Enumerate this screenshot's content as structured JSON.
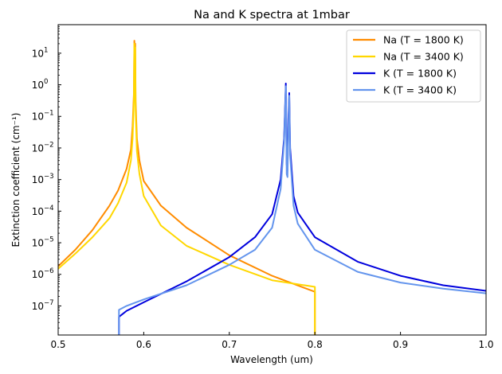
{
  "chart_data": {
    "type": "line",
    "title": "Na and K spectra at 1mbar",
    "xlabel": "Wavelength (um)",
    "ylabel": "Extinction coefficient (cm⁻¹)",
    "xlim": [
      0.5,
      1.0
    ],
    "ylim": [
      1.2e-08,
      80
    ],
    "yscale": "log",
    "grid": false,
    "legend_position": "top-right",
    "x_ticks": [
      "0.5",
      "0.6",
      "0.7",
      "0.8",
      "0.9",
      "1.0"
    ],
    "y_ticks": [
      {
        "base": "10",
        "exp": "1"
      },
      {
        "base": "10",
        "exp": "0"
      },
      {
        "base": "10",
        "exp": "−1"
      },
      {
        "base": "10",
        "exp": "−2"
      },
      {
        "base": "10",
        "exp": "−3"
      },
      {
        "base": "10",
        "exp": "−4"
      },
      {
        "base": "10",
        "exp": "−5"
      },
      {
        "base": "10",
        "exp": "−6"
      },
      {
        "base": "10",
        "exp": "−7"
      }
    ],
    "series": [
      {
        "name": "Na (T = 1800 K)",
        "color": "#ff8c00",
        "x": [
          0.5,
          0.52,
          0.54,
          0.56,
          0.57,
          0.58,
          0.585,
          0.587,
          0.5885,
          0.589,
          0.5895,
          0.59,
          0.5905,
          0.592,
          0.595,
          0.6,
          0.62,
          0.65,
          0.7,
          0.75,
          0.8
        ],
        "y": [
          1.8e-06,
          6e-06,
          2.5e-05,
          0.00015,
          0.00045,
          0.0022,
          0.009,
          0.05,
          0.5,
          25,
          12,
          20,
          0.3,
          0.02,
          0.004,
          0.0009,
          0.00015,
          3e-05,
          4e-06,
          9e-07,
          2.8e-07
        ]
      },
      {
        "name": "Na (T = 3400 K)",
        "color": "#ffd700",
        "x": [
          0.5,
          0.52,
          0.54,
          0.56,
          0.57,
          0.58,
          0.585,
          0.587,
          0.5885,
          0.589,
          0.5895,
          0.59,
          0.5905,
          0.592,
          0.595,
          0.6,
          0.62,
          0.65,
          0.7,
          0.75,
          0.8
        ],
        "y": [
          1.5e-06,
          4.5e-06,
          1.5e-05,
          6e-05,
          0.00018,
          0.0008,
          0.004,
          0.02,
          0.3,
          20,
          10,
          15,
          0.15,
          0.008,
          0.0015,
          0.0003,
          3.5e-05,
          8e-06,
          2e-06,
          6.5e-07,
          4e-07
        ]
      },
      {
        "name": "K (T = 1800 K)",
        "color": "#0000dd",
        "x": [
          0.571,
          0.58,
          0.6,
          0.65,
          0.7,
          0.73,
          0.75,
          0.76,
          0.764,
          0.766,
          0.767,
          0.768,
          0.769,
          0.77,
          0.771,
          0.775,
          0.78,
          0.8,
          0.85,
          0.9,
          0.95,
          1.0
        ],
        "y": [
          4.5e-08,
          7e-08,
          1.3e-07,
          6e-07,
          3.5e-06,
          1.5e-05,
          8e-05,
          0.001,
          0.02,
          1.1,
          0.003,
          0.002,
          0.08,
          0.55,
          0.01,
          0.0003,
          9e-05,
          1.5e-05,
          2.5e-06,
          9e-07,
          4.5e-07,
          3e-07
        ]
      },
      {
        "name": "K (T = 3400 K)",
        "color": "#6495ed",
        "x": [
          0.571,
          0.58,
          0.6,
          0.65,
          0.7,
          0.73,
          0.75,
          0.76,
          0.764,
          0.766,
          0.767,
          0.768,
          0.769,
          0.77,
          0.771,
          0.775,
          0.78,
          0.8,
          0.85,
          0.9,
          0.95,
          1.0
        ],
        "y": [
          7.5e-08,
          1e-07,
          1.6e-07,
          4.5e-07,
          2e-06,
          6e-06,
          3e-05,
          0.0005,
          0.015,
          0.9,
          0.0015,
          0.0012,
          0.04,
          0.45,
          0.006,
          0.00015,
          4e-05,
          6e-06,
          1.2e-06,
          5.5e-07,
          3.5e-07,
          2.5e-07
        ]
      }
    ]
  }
}
